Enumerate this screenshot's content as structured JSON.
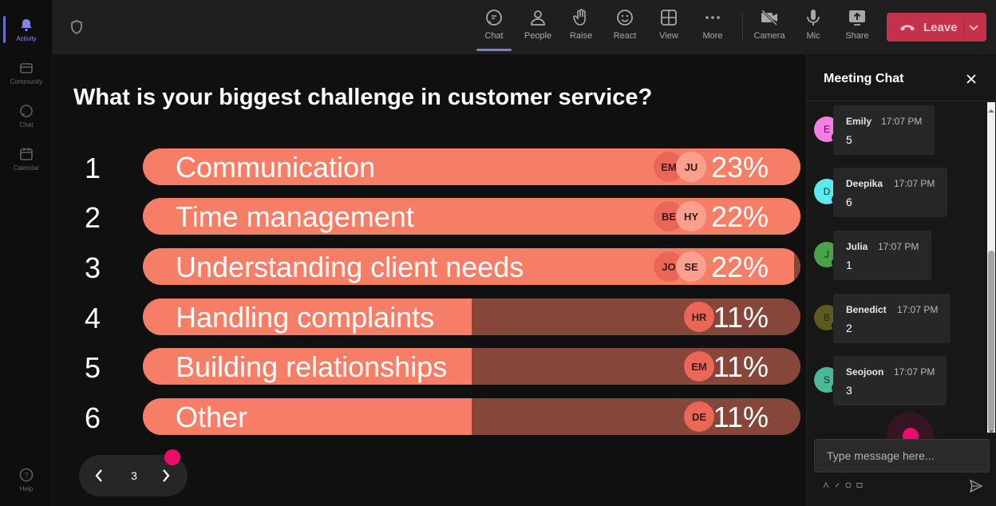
{
  "rail": [
    {
      "label": "Activity",
      "icon": "bell-icon",
      "active": true
    },
    {
      "label": "Community",
      "icon": "community-icon"
    },
    {
      "label": "Chat",
      "icon": "chat-icon"
    },
    {
      "label": "Calendar",
      "icon": "calendar-icon"
    },
    {
      "label": "Help",
      "icon": "help-icon"
    }
  ],
  "toolbar": {
    "chat": "Chat",
    "people": "People",
    "raise": "Raise",
    "react": "React",
    "view": "View",
    "more": "More",
    "camera": "Camera",
    "mic": "Mic",
    "share": "Share",
    "leave": "Leave"
  },
  "poll": {
    "question": "What is your biggest challenge in customer service?",
    "options": [
      {
        "num": "1",
        "label": "Communication",
        "percent": "23%",
        "fill": 1.0,
        "avatars": [
          "EM",
          "JU"
        ]
      },
      {
        "num": "2",
        "label": "Time management",
        "percent": "22%",
        "fill": 1.0,
        "avatars": [
          "BE",
          "HY"
        ]
      },
      {
        "num": "3",
        "label": "Understanding client needs",
        "percent": "22%",
        "fill": 0.99,
        "avatars": [
          "JO",
          "SE"
        ]
      },
      {
        "num": "4",
        "label": "Handling complaints",
        "percent": "11%",
        "fill": 0.5,
        "avatars": [
          "HR"
        ]
      },
      {
        "num": "5",
        "label": "Building relationships",
        "percent": "11%",
        "fill": 0.5,
        "avatars": [
          "EM"
        ]
      },
      {
        "num": "6",
        "label": "Other",
        "percent": "11%",
        "fill": 0.5,
        "avatars": [
          "DE"
        ]
      }
    ],
    "page": "3"
  },
  "chat": {
    "title": "Meeting Chat",
    "placeholder": "Type message here...",
    "messages": [
      {
        "initial": "E",
        "name": "Emily",
        "time": "17:07 PM",
        "text": "5",
        "color": "#f27ee6"
      },
      {
        "initial": "D",
        "name": "Deepika",
        "time": "17:07 PM",
        "text": "6",
        "color": "#5ee8f0"
      },
      {
        "initial": "J",
        "name": "Julia",
        "time": "17:07 PM",
        "text": "1",
        "color": "#4aa34a"
      },
      {
        "initial": "B",
        "name": "Benedict",
        "time": "17:07 PM",
        "text": "2",
        "color": "#5c5a1c"
      },
      {
        "initial": "S",
        "name": "Seojoon",
        "time": "17:07 PM",
        "text": "3",
        "color": "#4cb89a"
      }
    ]
  },
  "colors": {
    "bar_fill": "#f77e66",
    "bar_track": "#86473a",
    "leave": "#c4314b",
    "accent": "#7b7fd9",
    "pointer": "#ee0b6b"
  }
}
